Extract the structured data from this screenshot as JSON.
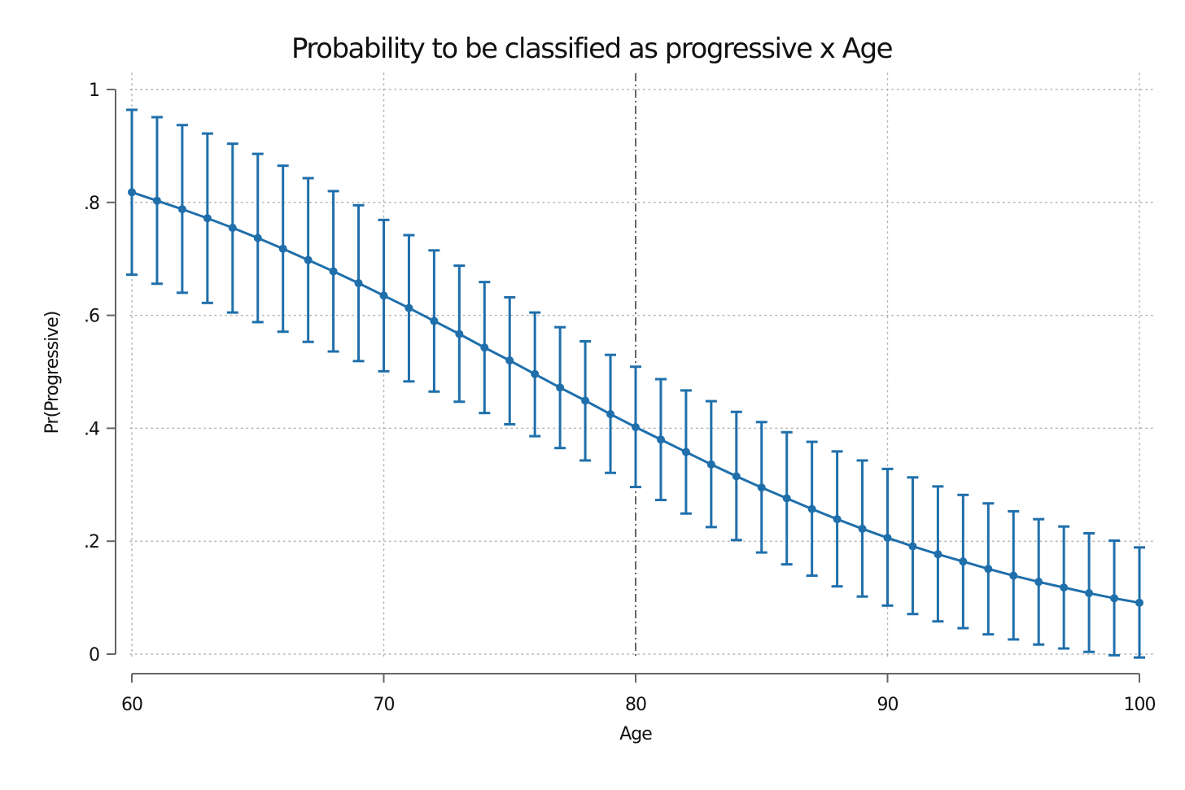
{
  "chart_data": {
    "type": "line",
    "title": "Probability to be classified as progressive x Age",
    "xlabel": "Age",
    "ylabel": "Pr(Progressive)",
    "xlim": [
      60,
      100
    ],
    "ylim": [
      0,
      1
    ],
    "x_ticks": [
      60,
      70,
      80,
      90,
      100
    ],
    "x_tick_labels": [
      "60",
      "70",
      "80",
      "90",
      "100"
    ],
    "y_ticks": [
      0,
      0.2,
      0.4,
      0.6,
      0.8,
      1
    ],
    "y_tick_labels": [
      "0",
      ".2",
      ".4",
      ".6",
      ".8",
      "1"
    ],
    "grid": true,
    "grid_style": "dotted",
    "reference_line": {
      "axis": "x",
      "value": 80,
      "style": "dash-dot"
    },
    "colors": {
      "series": "#1f6fab",
      "grid": "#b4b4b4",
      "axis": "#666666",
      "reference": "#555555"
    },
    "series": [
      {
        "x": [
          60,
          61,
          62,
          63,
          64,
          65,
          66,
          67,
          68,
          69,
          70,
          71,
          72,
          73,
          74,
          75,
          76,
          77,
          78,
          79,
          80,
          81,
          82,
          83,
          84,
          85,
          86,
          87,
          88,
          89,
          90,
          91,
          92,
          93,
          94,
          95,
          96,
          97,
          98,
          99,
          100
        ],
        "y": [
          0.818,
          0.803,
          0.788,
          0.772,
          0.755,
          0.737,
          0.718,
          0.698,
          0.678,
          0.657,
          0.635,
          0.613,
          0.59,
          0.567,
          0.543,
          0.52,
          0.496,
          0.472,
          0.449,
          0.425,
          0.402,
          0.38,
          0.358,
          0.336,
          0.315,
          0.295,
          0.276,
          0.257,
          0.239,
          0.222,
          0.206,
          0.191,
          0.177,
          0.164,
          0.151,
          0.139,
          0.128,
          0.118,
          0.108,
          0.099,
          0.091
        ],
        "ci_low": [
          0.672,
          0.656,
          0.64,
          0.622,
          0.605,
          0.588,
          0.571,
          0.553,
          0.536,
          0.519,
          0.501,
          0.483,
          0.465,
          0.447,
          0.427,
          0.407,
          0.386,
          0.365,
          0.343,
          0.321,
          0.296,
          0.273,
          0.249,
          0.225,
          0.202,
          0.18,
          0.159,
          0.139,
          0.12,
          0.102,
          0.086,
          0.071,
          0.058,
          0.046,
          0.035,
          0.026,
          0.017,
          0.01,
          0.004,
          -0.002,
          -0.006
        ],
        "ci_high": [
          0.964,
          0.951,
          0.937,
          0.922,
          0.904,
          0.886,
          0.865,
          0.843,
          0.82,
          0.795,
          0.769,
          0.742,
          0.715,
          0.688,
          0.659,
          0.632,
          0.605,
          0.579,
          0.554,
          0.53,
          0.509,
          0.487,
          0.467,
          0.448,
          0.429,
          0.411,
          0.393,
          0.376,
          0.359,
          0.343,
          0.328,
          0.313,
          0.297,
          0.282,
          0.267,
          0.253,
          0.239,
          0.226,
          0.214,
          0.201,
          0.189
        ]
      }
    ]
  }
}
